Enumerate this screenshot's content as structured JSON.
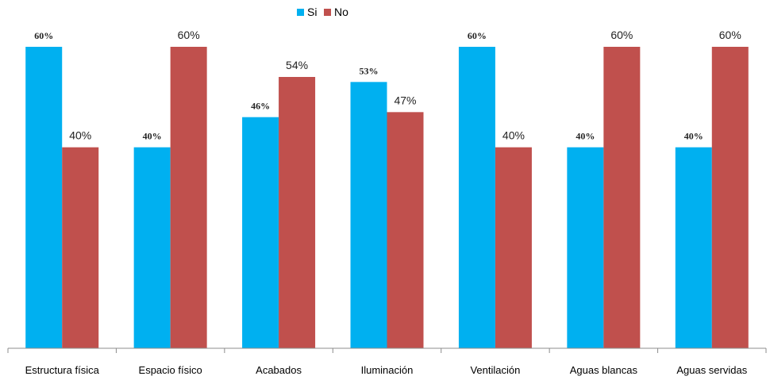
{
  "chart_data": {
    "type": "bar",
    "categories": [
      "Estructura física",
      "Espacio físico",
      "Acabados",
      "Iluminación",
      "Ventilación",
      "Aguas blancas",
      "Aguas servidas"
    ],
    "series": [
      {
        "name": "Si",
        "values": [
          60,
          40,
          46,
          53,
          60,
          40,
          40
        ],
        "labels": [
          "60%",
          "40%",
          "46%",
          "53%",
          "60%",
          "40%",
          "40%"
        ],
        "color": "#00B0F0"
      },
      {
        "name": "No",
        "values": [
          40,
          60,
          54,
          47,
          40,
          60,
          60
        ],
        "labels": [
          "40%",
          "60%",
          "54%",
          "47%",
          "40%",
          "60%",
          "60%"
        ],
        "color": "#C0504D"
      }
    ],
    "ylim": [
      0,
      60
    ],
    "grid": false,
    "legend_position": "top-center",
    "title": "",
    "xlabel": "",
    "ylabel": ""
  }
}
